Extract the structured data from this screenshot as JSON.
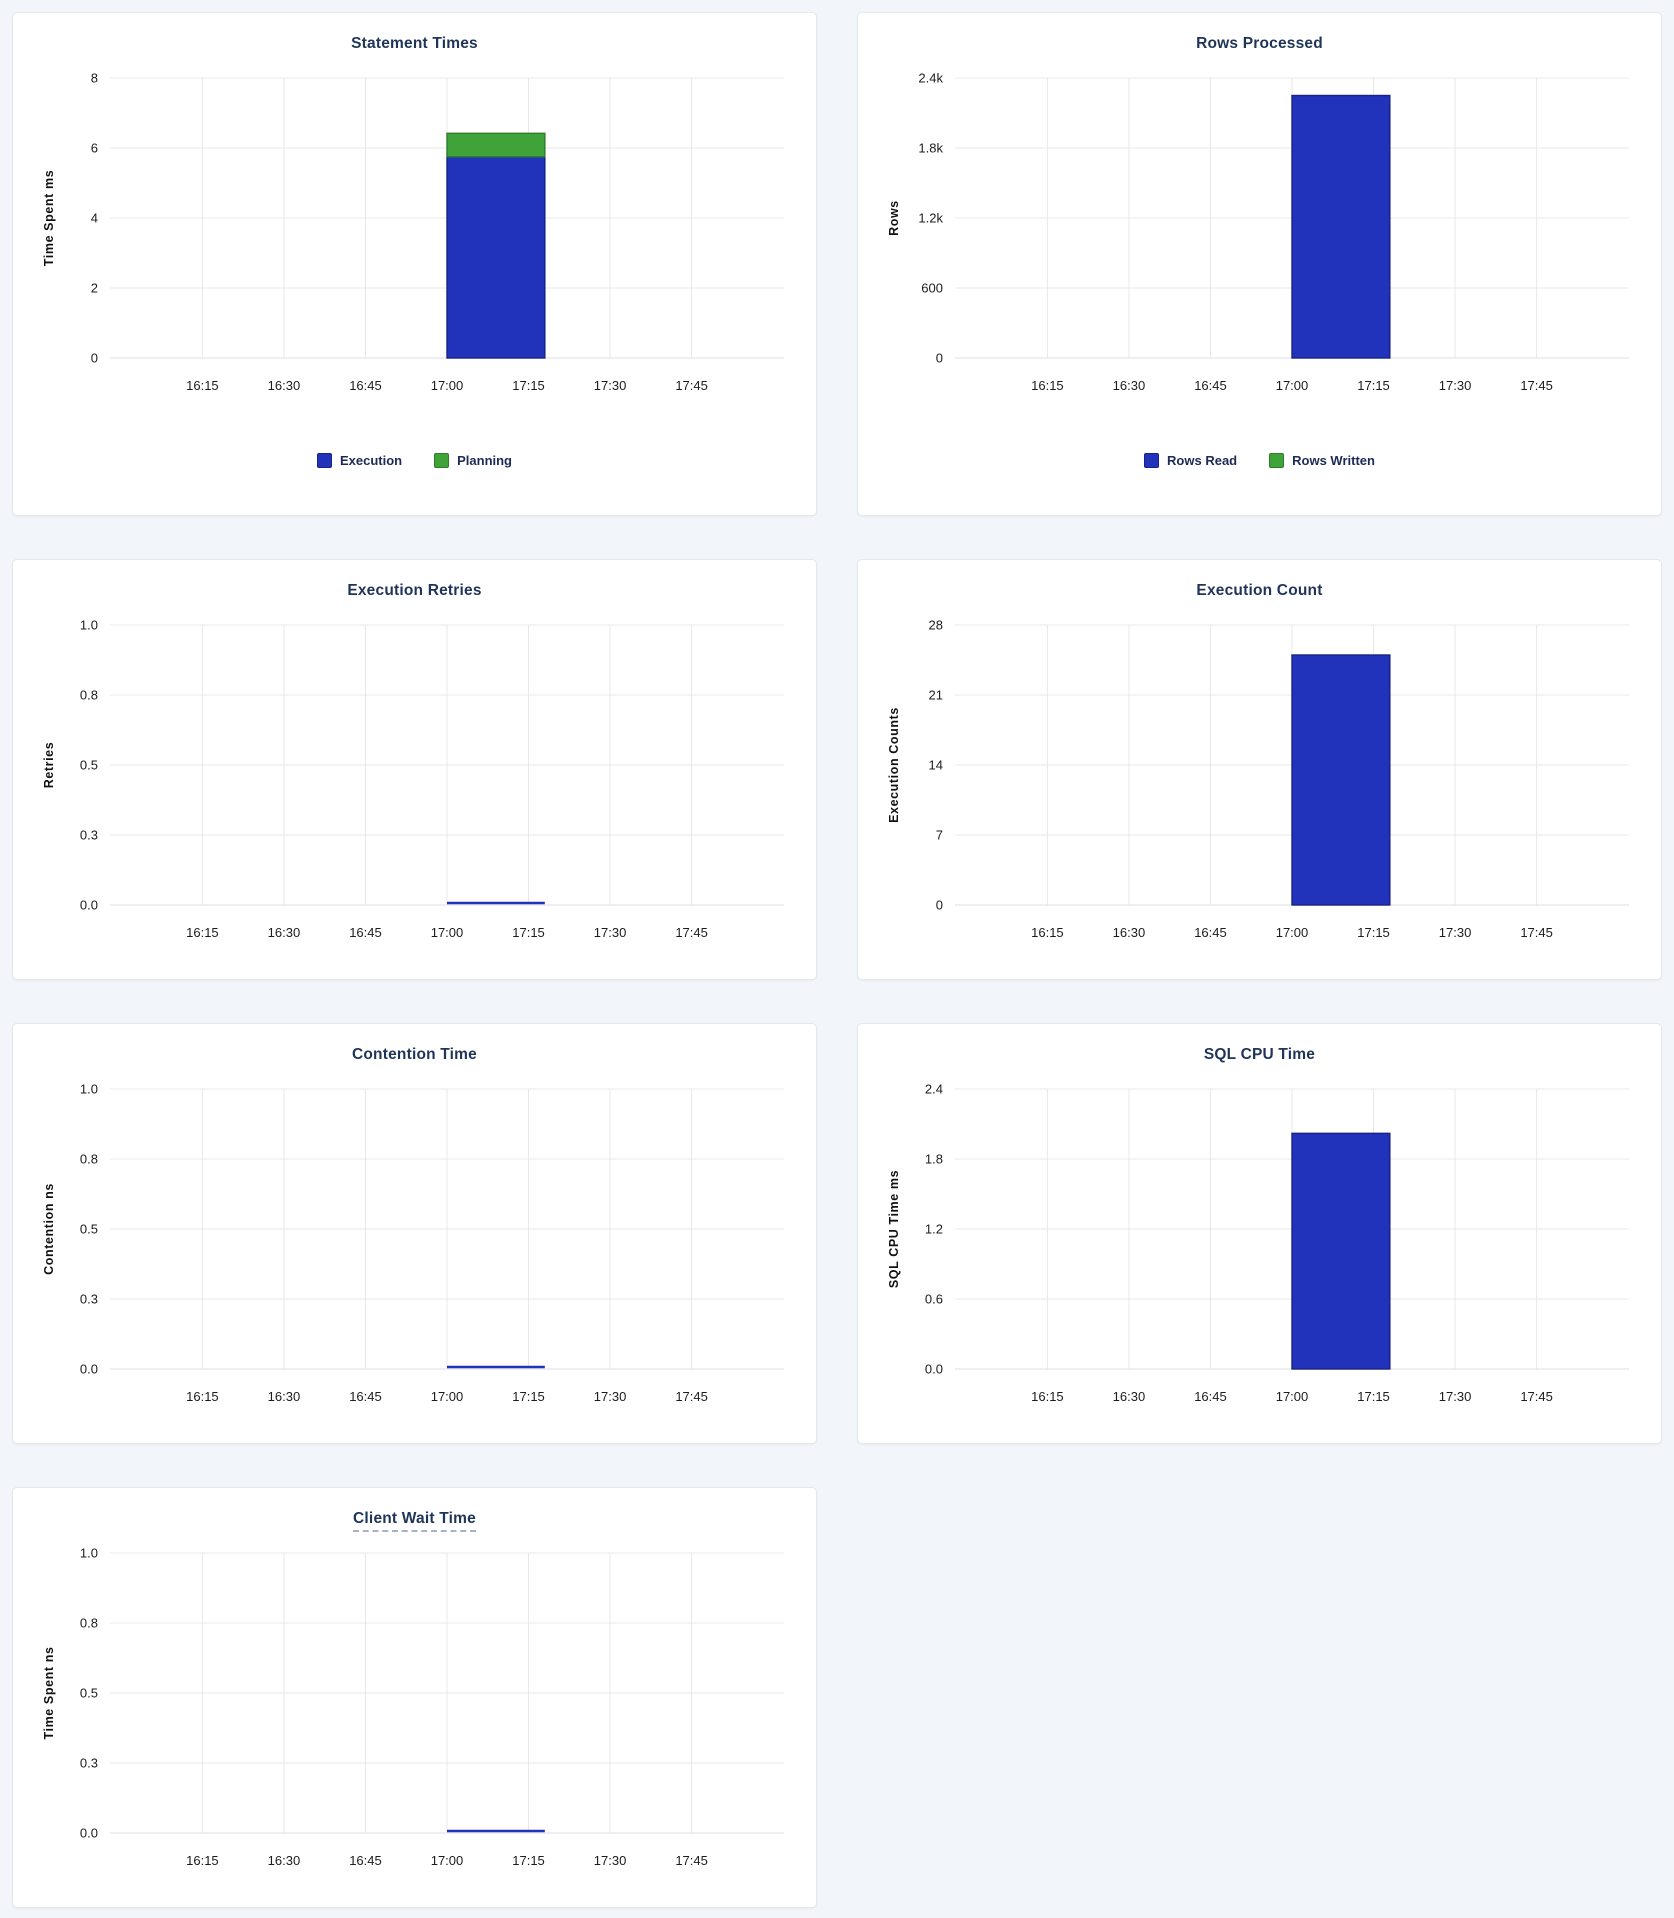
{
  "page": {
    "background": "#f2f6fa",
    "card_background": "#ffffff"
  },
  "colors": {
    "blue": "#2133bb",
    "blue_stroke": "#1a2185",
    "green": "#3fa33a",
    "green_stroke": "#2e7d2b",
    "grid": "#e8e8e8",
    "axis_line": "#dcdfe4",
    "title_text": "#1f3459",
    "tick_text": "#1c1c1c",
    "axis_label_text": "#111111",
    "legend_text": "#1c2a55"
  },
  "chart_data": [
    {
      "type": "bar",
      "title": "Statement Times",
      "title_underline": false,
      "xlabel": "",
      "ylabel": "Time Spent ms",
      "ylim": [
        0,
        8
      ],
      "ytick_values": [
        0,
        2,
        4,
        6,
        8
      ],
      "ytick_labels": [
        "0",
        "2",
        "4",
        "6",
        "8"
      ],
      "x_tick_labels": [
        "16:15",
        "16:30",
        "16:45",
        "17:00",
        "17:15",
        "17:30",
        "17:45"
      ],
      "x_domain": [
        "15:58",
        "18:02"
      ],
      "bar_window": [
        "17:00",
        "17:18"
      ],
      "grid": true,
      "series": [
        {
          "name": "Execution",
          "value": 5.75,
          "color": "blue"
        },
        {
          "name": "Planning",
          "value": 0.67,
          "color": "green"
        }
      ],
      "legend": [
        {
          "label": "Execution",
          "color": "blue"
        },
        {
          "label": "Planning",
          "color": "green"
        }
      ],
      "legend_position": "bottom"
    },
    {
      "type": "bar",
      "title": "Rows Processed",
      "title_underline": false,
      "xlabel": "",
      "ylabel": "Rows",
      "ylim": [
        0,
        2400
      ],
      "ytick_values": [
        0,
        600,
        1200,
        1800,
        2400
      ],
      "ytick_labels": [
        "0",
        "600",
        "1.2k",
        "1.8k",
        "2.4k"
      ],
      "x_tick_labels": [
        "16:15",
        "16:30",
        "16:45",
        "17:00",
        "17:15",
        "17:30",
        "17:45"
      ],
      "x_domain": [
        "15:58",
        "18:02"
      ],
      "bar_window": [
        "17:00",
        "17:18"
      ],
      "grid": true,
      "series": [
        {
          "name": "Rows Read",
          "value": 2250,
          "color": "blue"
        },
        {
          "name": "Rows Written",
          "value": 0,
          "color": "green"
        }
      ],
      "legend": [
        {
          "label": "Rows Read",
          "color": "blue"
        },
        {
          "label": "Rows Written",
          "color": "green"
        }
      ],
      "legend_position": "bottom"
    },
    {
      "type": "bar",
      "title": "Execution Retries",
      "title_underline": false,
      "xlabel": "",
      "ylabel": "Retries",
      "ylim": [
        0,
        1
      ],
      "ytick_values": [
        0,
        0.25,
        0.5,
        0.75,
        1
      ],
      "ytick_labels": [
        "0.0",
        "0.3",
        "0.5",
        "0.8",
        "1.0"
      ],
      "x_tick_labels": [
        "16:15",
        "16:30",
        "16:45",
        "17:00",
        "17:15",
        "17:30",
        "17:45"
      ],
      "x_domain": [
        "15:58",
        "18:02"
      ],
      "bar_window": [
        "17:00",
        "17:18"
      ],
      "grid": true,
      "series": [
        {
          "name": "Retries",
          "value": 0,
          "color": "blue"
        }
      ],
      "legend": [],
      "legend_position": "none"
    },
    {
      "type": "bar",
      "title": "Execution Count",
      "title_underline": false,
      "xlabel": "",
      "ylabel": "Execution Counts",
      "ylim": [
        0,
        28
      ],
      "ytick_values": [
        0,
        7,
        14,
        21,
        28
      ],
      "ytick_labels": [
        "0",
        "7",
        "14",
        "21",
        "28"
      ],
      "x_tick_labels": [
        "16:15",
        "16:30",
        "16:45",
        "17:00",
        "17:15",
        "17:30",
        "17:45"
      ],
      "x_domain": [
        "15:58",
        "18:02"
      ],
      "bar_window": [
        "17:00",
        "17:18"
      ],
      "grid": true,
      "series": [
        {
          "name": "Execution Count",
          "value": 25,
          "color": "blue"
        }
      ],
      "legend": [],
      "legend_position": "none"
    },
    {
      "type": "bar",
      "title": "Contention Time",
      "title_underline": false,
      "xlabel": "",
      "ylabel": "Contention ns",
      "ylim": [
        0,
        1
      ],
      "ytick_values": [
        0,
        0.25,
        0.5,
        0.75,
        1
      ],
      "ytick_labels": [
        "0.0",
        "0.3",
        "0.5",
        "0.8",
        "1.0"
      ],
      "x_tick_labels": [
        "16:15",
        "16:30",
        "16:45",
        "17:00",
        "17:15",
        "17:30",
        "17:45"
      ],
      "x_domain": [
        "15:58",
        "18:02"
      ],
      "bar_window": [
        "17:00",
        "17:18"
      ],
      "grid": true,
      "series": [
        {
          "name": "Contention",
          "value": 0,
          "color": "blue"
        }
      ],
      "legend": [],
      "legend_position": "none"
    },
    {
      "type": "bar",
      "title": "SQL CPU Time",
      "title_underline": false,
      "xlabel": "",
      "ylabel": "SQL CPU Time ms",
      "ylim": [
        0,
        2.4
      ],
      "ytick_values": [
        0,
        0.6,
        1.2,
        1.8,
        2.4
      ],
      "ytick_labels": [
        "0.0",
        "0.6",
        "1.2",
        "1.8",
        "2.4"
      ],
      "x_tick_labels": [
        "16:15",
        "16:30",
        "16:45",
        "17:00",
        "17:15",
        "17:30",
        "17:45"
      ],
      "x_domain": [
        "15:58",
        "18:02"
      ],
      "bar_window": [
        "17:00",
        "17:18"
      ],
      "grid": true,
      "series": [
        {
          "name": "SQL CPU Time",
          "value": 2.02,
          "color": "blue"
        }
      ],
      "legend": [],
      "legend_position": "none"
    },
    {
      "type": "bar",
      "title": "Client Wait Time",
      "title_underline": true,
      "xlabel": "",
      "ylabel": "Time Spent ns",
      "ylim": [
        0,
        1
      ],
      "ytick_values": [
        0,
        0.25,
        0.5,
        0.75,
        1
      ],
      "ytick_labels": [
        "0.0",
        "0.3",
        "0.5",
        "0.8",
        "1.0"
      ],
      "x_tick_labels": [
        "16:15",
        "16:30",
        "16:45",
        "17:00",
        "17:15",
        "17:30",
        "17:45"
      ],
      "x_domain": [
        "15:58",
        "18:02"
      ],
      "bar_window": [
        "17:00",
        "17:18"
      ],
      "grid": true,
      "series": [
        {
          "name": "Client Wait",
          "value": 0,
          "color": "blue"
        }
      ],
      "legend": [],
      "legend_position": "none"
    }
  ]
}
